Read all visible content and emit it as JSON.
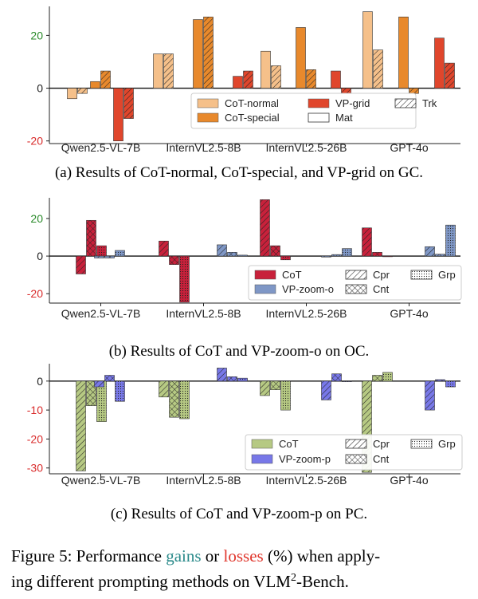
{
  "colors": {
    "cot_normal": "#f5c08a",
    "cot_special": "#e8892c",
    "vp_grid": "#e0462c",
    "cot_b": "#c8213b",
    "vp_zoom_o": "#7f97c6",
    "cot_c": "#b6c983",
    "vp_zoom_p": "#7878e8",
    "tick_pos": "#2a8a2a",
    "tick_neg": "#d92b2b",
    "tick_zero": "#222222",
    "gains": "#2a8a8a",
    "losses": "#e0362c"
  },
  "chart_data": [
    {
      "id": "a",
      "type": "bar",
      "title": "",
      "categories": [
        "Qwen2.5-VL-7B",
        "InternVL2.5-8B",
        "InternVL2.5-26B",
        "GPT-4o"
      ],
      "groups": [
        "Mat",
        "Trk"
      ],
      "series": [
        {
          "name": "CoT-normal",
          "color_key": "cot_normal",
          "values": {
            "Mat": [
              -4,
              13,
              14,
              29
            ],
            "Trk": [
              -2,
              13,
              8.5,
              14.5
            ]
          }
        },
        {
          "name": "CoT-special",
          "color_key": "cot_special",
          "values": {
            "Mat": [
              2.5,
              26,
              23,
              27
            ],
            "Trk": [
              6.5,
              27,
              7,
              -2
            ]
          }
        },
        {
          "name": "VP-grid",
          "color_key": "vp_grid",
          "values": {
            "Mat": [
              -20,
              4.5,
              6.5,
              19
            ],
            "Trk": [
              -11.5,
              6.5,
              -2,
              9.5
            ]
          }
        }
      ],
      "ylim": [
        -21,
        31
      ],
      "yticks": [
        -20,
        0,
        20
      ],
      "legend": {
        "placement": "bottom-right",
        "entries": [
          {
            "label": "CoT-normal",
            "kind": "solid",
            "color_key": "cot_normal"
          },
          {
            "label": "VP-grid",
            "kind": "solid",
            "color_key": "vp_grid"
          },
          {
            "label": "Trk",
            "kind": "hatch",
            "color_key": ""
          },
          {
            "label": "CoT-special",
            "kind": "solid",
            "color_key": "cot_special"
          },
          {
            "label": "Mat",
            "kind": "plain",
            "color_key": ""
          }
        ]
      }
    },
    {
      "id": "b",
      "type": "bar",
      "title": "",
      "categories": [
        "Qwen2.5-VL-7B",
        "InternVL2.5-8B",
        "InternVL2.5-26B",
        "GPT-4o"
      ],
      "groups": [
        "Cpr",
        "Cnt",
        "Grp"
      ],
      "series": [
        {
          "name": "CoT",
          "color_key": "cot_b",
          "values": {
            "Cpr": [
              -9.5,
              8,
              30,
              15
            ],
            "Cnt": [
              19,
              -4.5,
              5.5,
              2
            ],
            "Grp": [
              5.5,
              -24.5,
              -2,
              0
            ]
          }
        },
        {
          "name": "VP-zoom-o",
          "color_key": "vp_zoom_o",
          "values": {
            "Cpr": [
              -1,
              6,
              -0.5,
              5
            ],
            "Cnt": [
              -1,
              2,
              0.8,
              1
            ],
            "Grp": [
              3,
              0.5,
              4,
              16.5
            ]
          }
        }
      ],
      "ylim": [
        -25,
        31
      ],
      "yticks": [
        -20,
        0,
        20
      ],
      "legend": {
        "placement": "bottom-right",
        "entries": [
          {
            "label": "CoT",
            "kind": "solid",
            "color_key": "cot_b"
          },
          {
            "label": "Cpr",
            "kind": "hatch",
            "color_key": ""
          },
          {
            "label": "Grp",
            "kind": "dots",
            "color_key": ""
          },
          {
            "label": "VP-zoom-o",
            "kind": "solid",
            "color_key": "vp_zoom_o"
          },
          {
            "label": "Cnt",
            "kind": "cross",
            "color_key": ""
          }
        ]
      }
    },
    {
      "id": "c",
      "type": "bar",
      "title": "",
      "categories": [
        "Qwen2.5-VL-7B",
        "InternVL2.5-8B",
        "InternVL2.5-26B",
        "GPT-4o"
      ],
      "groups": [
        "Cpr",
        "Cnt",
        "Grp"
      ],
      "series": [
        {
          "name": "CoT",
          "color_key": "cot_c",
          "values": {
            "Cpr": [
              -31,
              -5.5,
              -5,
              -31.5
            ],
            "Cnt": [
              -8.5,
              -12.5,
              -3,
              2
            ],
            "Grp": [
              -14,
              -13,
              -10,
              3
            ]
          }
        },
        {
          "name": "VP-zoom-p",
          "color_key": "vp_zoom_p",
          "values": {
            "Cpr": [
              -2,
              4.5,
              -6.5,
              -10
            ],
            "Cnt": [
              2,
              1.5,
              2.5,
              0.5
            ],
            "Grp": [
              -7,
              1,
              0,
              -2
            ]
          }
        }
      ],
      "ylim": [
        -32,
        6
      ],
      "yticks": [
        -30,
        -20,
        -10,
        0
      ],
      "legend": {
        "placement": "bottom-right",
        "entries": [
          {
            "label": "CoT",
            "kind": "solid",
            "color_key": "cot_c"
          },
          {
            "label": "Cpr",
            "kind": "hatch",
            "color_key": ""
          },
          {
            "label": "Grp",
            "kind": "dots",
            "color_key": ""
          },
          {
            "label": "VP-zoom-p",
            "kind": "solid",
            "color_key": "vp_zoom_p"
          },
          {
            "label": "Cnt",
            "kind": "cross",
            "color_key": ""
          }
        ]
      }
    }
  ],
  "captions": {
    "a": "(a) Results of CoT-normal, CoT-special, and VP-grid on GC.",
    "b": "(b) Results of CoT and VP-zoom-o on OC.",
    "c": "(c) Results of CoT and VP-zoom-p on PC."
  },
  "figure_caption": {
    "lead": "Figure 5: Performance ",
    "gains": "gains",
    "or": " or ",
    "losses": "losses",
    "rest1": " (%) when apply-",
    "line2_pre": "ing different prompting methods on VLM",
    "sup": "2",
    "line2_post": "-Bench."
  }
}
